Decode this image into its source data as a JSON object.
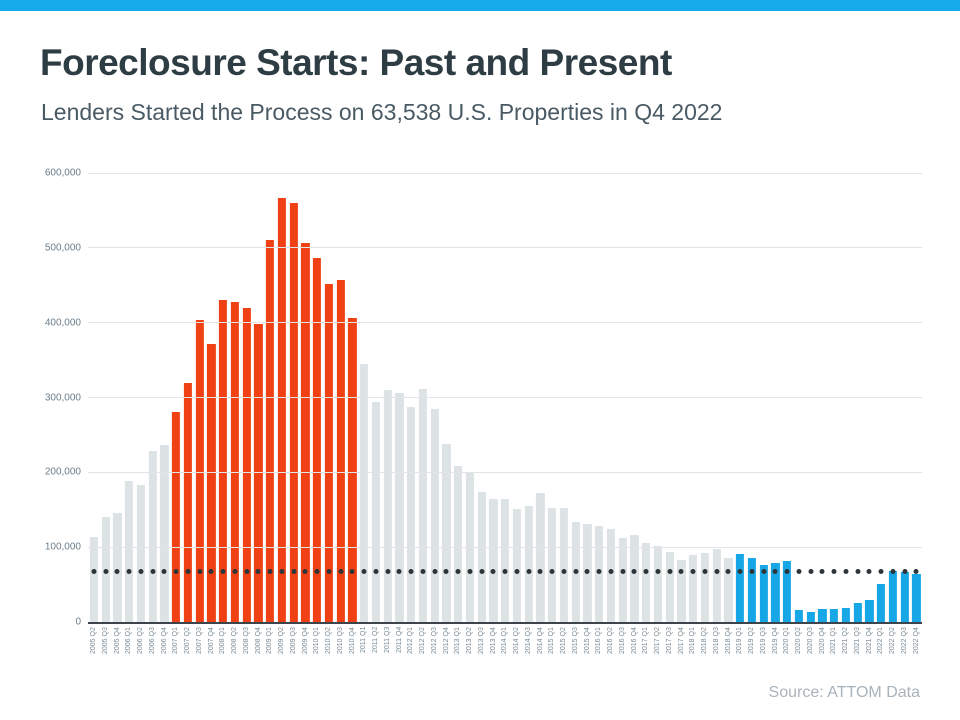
{
  "page": {
    "accent_color": "#17aaeb"
  },
  "header": {
    "title": "Foreclosure Starts: Past and Present",
    "subtitle": "Lenders Started the Process on 63,538 U.S. Properties in Q4 2022"
  },
  "footer": {
    "source": "Source: ATTOM Data"
  },
  "chart_data": {
    "type": "bar",
    "title": "Foreclosure Starts: Past and Present",
    "subtitle": "Lenders Started the Process on 63,538 U.S. Properties in Q4 2022",
    "xlabel": "",
    "ylabel": "",
    "ylim": [
      0,
      600000
    ],
    "grid": true,
    "legend": "none",
    "ytick_values": [
      600000,
      500000,
      400000,
      300000,
      200000,
      100000,
      0
    ],
    "ytick_labels": [
      "600,000",
      "500,000",
      "400,000",
      "300,000",
      "200,000",
      "100,000",
      "0"
    ],
    "categories": [
      "2005 Q2",
      "2005 Q3",
      "2005 Q4",
      "2006 Q1",
      "2006 Q2",
      "2006 Q3",
      "2006 Q4",
      "2007 Q1",
      "2007 Q2",
      "2007 Q3",
      "2007 Q4",
      "2008 Q1",
      "2008 Q2",
      "2008 Q3",
      "2008 Q4",
      "2009 Q1",
      "2009 Q2",
      "2009 Q3",
      "2009 Q4",
      "2010 Q1",
      "2010 Q2",
      "2010 Q3",
      "2010 Q4",
      "2011 Q1",
      "2011 Q2",
      "2011 Q3",
      "2011 Q4",
      "2012 Q1",
      "2012 Q2",
      "2012 Q3",
      "2012 Q4",
      "2013 Q1",
      "2013 Q2",
      "2013 Q3",
      "2013 Q4",
      "2014 Q1",
      "2014 Q2",
      "2014 Q3",
      "2014 Q4",
      "2015 Q1",
      "2015 Q2",
      "2015 Q3",
      "2015 Q4",
      "2016 Q1",
      "2016 Q2",
      "2016 Q3",
      "2016 Q4",
      "2017 Q1",
      "2017 Q2",
      "2017 Q3",
      "2017 Q4",
      "2018 Q1",
      "2018 Q2",
      "2018 Q3",
      "2018 Q4",
      "2019 Q1",
      "2019 Q2",
      "2019 Q3",
      "2019 Q4",
      "2020 Q1",
      "2020 Q2",
      "2020 Q3",
      "2020 Q4",
      "2021 Q1",
      "2021 Q2",
      "2021 Q3",
      "2021 Q4",
      "2022 Q1",
      "2022 Q2",
      "2022 Q3",
      "2022 Q4"
    ],
    "values": [
      113000,
      140000,
      146000,
      188000,
      183000,
      229000,
      236000,
      281000,
      319000,
      404000,
      372000,
      430000,
      428000,
      419000,
      398000,
      510000,
      567000,
      560000,
      507000,
      486000,
      452000,
      457000,
      406000,
      345000,
      294000,
      310000,
      306000,
      287000,
      311000,
      284000,
      238000,
      209000,
      199000,
      174000,
      164000,
      164000,
      151000,
      155000,
      172000,
      153000,
      152000,
      133000,
      131000,
      128000,
      124000,
      112000,
      116000,
      106000,
      102000,
      94000,
      83000,
      89000,
      92000,
      97000,
      85000,
      91000,
      85000,
      76000,
      79000,
      81000,
      16000,
      14000,
      18000,
      17000,
      19000,
      26000,
      30000,
      51000,
      68000,
      67000,
      63538
    ],
    "color_segments": [
      {
        "name": "gray-early",
        "from_index": 0,
        "to_index": 6,
        "color": "#dde2e4",
        "textured": true
      },
      {
        "name": "red-crisis",
        "from_index": 7,
        "to_index": 22,
        "color": "#f04115",
        "textured": false
      },
      {
        "name": "gray-middle",
        "from_index": 23,
        "to_index": 54,
        "color": "#dde2e4",
        "textured": true
      },
      {
        "name": "blue-recent",
        "from_index": 55,
        "to_index": 70,
        "color": "#18a7e6",
        "textured": false
      }
    ],
    "reference_line": {
      "style": "dotted",
      "value": 67000,
      "color": "#2d343a"
    },
    "source": "Source: ATTOM Data"
  }
}
